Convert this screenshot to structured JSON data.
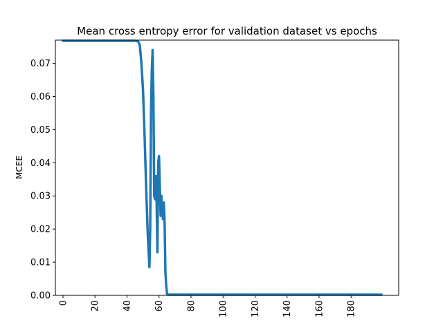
{
  "chart_data": {
    "type": "line",
    "title": "Mean cross entropy error for validation dataset vs epochs",
    "xlabel": "",
    "ylabel": "MCEE",
    "xlim": [
      -4.75,
      209.75
    ],
    "ylim": [
      0.0,
      0.077
    ],
    "xticks": [
      0,
      20,
      40,
      60,
      80,
      100,
      120,
      140,
      160,
      180
    ],
    "xtick_labels": [
      "0",
      "20",
      "40",
      "60",
      "80",
      "100",
      "120",
      "140",
      "160",
      "180"
    ],
    "xtick_rotation": 90,
    "yticks": [
      0.0,
      0.01,
      0.02,
      0.03,
      0.04,
      0.05,
      0.06,
      0.07
    ],
    "ytick_labels": [
      "0.00",
      "0.01",
      "0.02",
      "0.03",
      "0.04",
      "0.05",
      "0.06",
      "0.07"
    ],
    "grid": false,
    "color": "#1f77b4",
    "series": [
      {
        "x": [
          0,
          10,
          20,
          30,
          40,
          45,
          47,
          48,
          49,
          50,
          51,
          52,
          53,
          54,
          54.5,
          55,
          55.5,
          56,
          56.5,
          57,
          57.5,
          58,
          58.5,
          59,
          59.5,
          60,
          60.5,
          61,
          61.5,
          62,
          62.5,
          63,
          63.5,
          64,
          64.5,
          65,
          65.5,
          66,
          70,
          80,
          100,
          120,
          140,
          160,
          180,
          199
        ],
        "y": [
          0.0768,
          0.0768,
          0.0768,
          0.0768,
          0.0768,
          0.0768,
          0.0766,
          0.0755,
          0.07,
          0.062,
          0.048,
          0.032,
          0.018,
          0.0085,
          0.02,
          0.055,
          0.068,
          0.074,
          0.06,
          0.03,
          0.029,
          0.036,
          0.028,
          0.013,
          0.04,
          0.042,
          0.033,
          0.024,
          0.03,
          0.025,
          0.023,
          0.028,
          0.022,
          0.007,
          0.003,
          0.0005,
          0.0002,
          0.0002,
          0.0002,
          0.0002,
          0.0002,
          0.0002,
          0.0002,
          0.0002,
          0.0002,
          0.0002
        ]
      }
    ]
  }
}
